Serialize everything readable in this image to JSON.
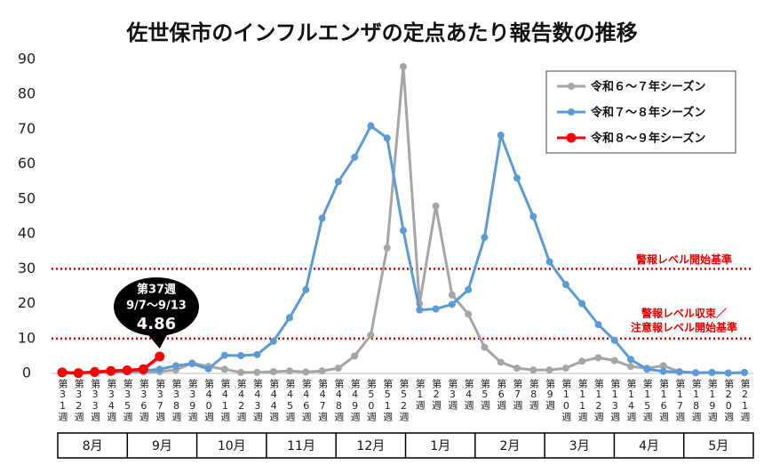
{
  "chart_data": {
    "type": "line",
    "title": "佐世保市のインフルエンザの定点あたり報告数の推移",
    "categories": [
      "第31週",
      "第32週",
      "第33週",
      "第34週",
      "第35週",
      "第36週",
      "第37週",
      "第38週",
      "第39週",
      "第40週",
      "第41週",
      "第42週",
      "第43週",
      "第44週",
      "第45週",
      "第46週",
      "第47週",
      "第48週",
      "第49週",
      "第50週",
      "第51週",
      "第52週",
      "第1週",
      "第2週",
      "第3週",
      "第4週",
      "第5週",
      "第6週",
      "第7週",
      "第8週",
      "第9週",
      "第10週",
      "第11週",
      "第12週",
      "第13週",
      "第14週",
      "第15週",
      "第16週",
      "第17週",
      "第18週",
      "第19週",
      "第20週",
      "第21週"
    ],
    "months": [
      "8月",
      "9月",
      "10月",
      "11月",
      "12月",
      "1月",
      "2月",
      "3月",
      "4月",
      "5月"
    ],
    "series": [
      {
        "name": "令和６～７年シーズン",
        "color": "#a5a5a5",
        "values": [
          0.2,
          0.3,
          0.3,
          0.5,
          0.5,
          0.4,
          0.5,
          1,
          3,
          2,
          1.2,
          0.3,
          0.3,
          0.5,
          0.7,
          0.4,
          0.7,
          1.5,
          5,
          11,
          36,
          88,
          20,
          48,
          22.5,
          17,
          7.5,
          3.2,
          1.5,
          1,
          1,
          1.5,
          3.5,
          4.5,
          3.7,
          2,
          1.5,
          2.2,
          0.5,
          0.2,
          0.2,
          0.1,
          0.2
        ]
      },
      {
        "name": "令和７～８年シーズン",
        "color": "#5b9bd5",
        "values": [
          0.3,
          0.2,
          0.3,
          0.5,
          0.6,
          0.8,
          1.2,
          2.2,
          2.8,
          1.3,
          5.2,
          5.1,
          5.4,
          9.2,
          16,
          24,
          44.5,
          55,
          62,
          71,
          67.5,
          41,
          18.2,
          18.5,
          19.8,
          24,
          39,
          68.3,
          56,
          45,
          32,
          25.5,
          20,
          14,
          9.5,
          4,
          1.2,
          0.6,
          0.4,
          0.2,
          0.3,
          0.1,
          0.3
        ]
      },
      {
        "name": "令和８～９年シーズン",
        "color": "#ff0000",
        "values": [
          0.3,
          0.1,
          0.4,
          0.7,
          0.9,
          1.2,
          4.86,
          null,
          null,
          null,
          null,
          null,
          null,
          null,
          null,
          null,
          null,
          null,
          null,
          null,
          null,
          null,
          null,
          null,
          null,
          null,
          null,
          null,
          null,
          null,
          null,
          null,
          null,
          null,
          null,
          null,
          null,
          null,
          null,
          null,
          null,
          null,
          null
        ]
      }
    ],
    "ylim": [
      0,
      90
    ],
    "yticks": [
      0,
      10,
      20,
      30,
      40,
      50,
      60,
      70,
      80,
      90
    ],
    "grid": false,
    "legend": "top-right",
    "reference_lines": [
      {
        "value": 30,
        "color": "#e00000",
        "label": [
          "警報レベル開始基準"
        ]
      },
      {
        "value": 10,
        "color": "#e00000",
        "label": [
          "警報レベル収束／",
          "注意報レベル開始基準"
        ]
      }
    ],
    "callout": {
      "week": "第37週",
      "period": "9/7～9/13"
    }
  }
}
